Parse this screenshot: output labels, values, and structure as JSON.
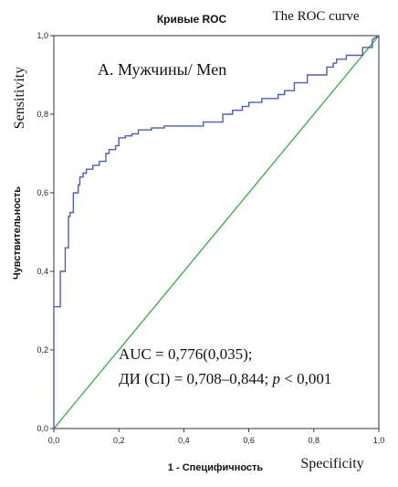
{
  "chart_data": {
    "type": "line",
    "title": "Кривые ROC",
    "title_en": "The ROC curve",
    "panel_label": "А. Мужчины/ Men",
    "xlabel": "1 - Специфичность",
    "xlabel_en": "Specificity",
    "ylabel": "Чувствительность",
    "ylabel_en": "Sensitivity",
    "xlim": [
      0,
      1
    ],
    "ylim": [
      0,
      1
    ],
    "x_ticks": [
      "0,0",
      "0,2",
      "0,4",
      "0,6",
      "0,8",
      "1,0"
    ],
    "y_ticks": [
      "0,0",
      "0,2",
      "0,4",
      "0,6",
      "0,8",
      "1,0"
    ],
    "x_tick_values": [
      0,
      0.2,
      0.4,
      0.6,
      0.8,
      1.0
    ],
    "y_tick_values": [
      0,
      0.2,
      0.4,
      0.6,
      0.8,
      1.0
    ],
    "annotation_line1": "AUC = 0,776(0,035);",
    "annotation_line2_prefix": "ДИ (CI) = 0,708–0,844; ",
    "annotation_line2_p": "p",
    "annotation_line2_suffix": " < 0,001",
    "grid": false,
    "series": [
      {
        "color": "#4a5fb0",
        "x": [
          0,
          0,
          0.02,
          0.02,
          0.035,
          0.035,
          0.045,
          0.045,
          0.05,
          0.05,
          0.06,
          0.06,
          0.075,
          0.075,
          0.08,
          0.08,
          0.09,
          0.09,
          0.1,
          0.1,
          0.12,
          0.12,
          0.14,
          0.14,
          0.16,
          0.16,
          0.17,
          0.17,
          0.19,
          0.19,
          0.2,
          0.2,
          0.22,
          0.22,
          0.24,
          0.24,
          0.26,
          0.26,
          0.3,
          0.3,
          0.34,
          0.34,
          0.46,
          0.46,
          0.52,
          0.52,
          0.55,
          0.55,
          0.58,
          0.58,
          0.6,
          0.6,
          0.64,
          0.64,
          0.69,
          0.69,
          0.71,
          0.71,
          0.74,
          0.74,
          0.78,
          0.78,
          0.84,
          0.84,
          0.86,
          0.86,
          0.87,
          0.87,
          0.9,
          0.9,
          0.95,
          0.95,
          0.98,
          0.98,
          1.0
        ],
        "y": [
          0,
          0.31,
          0.31,
          0.4,
          0.4,
          0.46,
          0.46,
          0.54,
          0.54,
          0.55,
          0.55,
          0.6,
          0.6,
          0.62,
          0.62,
          0.64,
          0.64,
          0.65,
          0.65,
          0.66,
          0.66,
          0.67,
          0.67,
          0.68,
          0.68,
          0.7,
          0.7,
          0.71,
          0.71,
          0.72,
          0.72,
          0.74,
          0.74,
          0.745,
          0.745,
          0.75,
          0.75,
          0.76,
          0.76,
          0.765,
          0.765,
          0.77,
          0.77,
          0.78,
          0.78,
          0.8,
          0.8,
          0.81,
          0.81,
          0.82,
          0.82,
          0.83,
          0.83,
          0.84,
          0.84,
          0.85,
          0.85,
          0.86,
          0.86,
          0.88,
          0.88,
          0.9,
          0.9,
          0.92,
          0.92,
          0.93,
          0.93,
          0.94,
          0.94,
          0.95,
          0.95,
          0.97,
          0.97,
          0.99,
          1.0
        ]
      },
      {
        "color": "#3aa64a",
        "x": [
          0,
          1
        ],
        "y": [
          0,
          1
        ]
      }
    ]
  }
}
